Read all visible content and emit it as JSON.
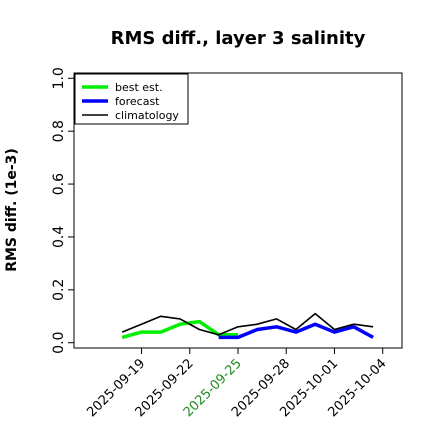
{
  "chart_data": {
    "type": "line",
    "title": "RMS diff., layer 3 salinity",
    "ylabel": "RMS diff. (1e-3)",
    "xlabel": "",
    "ylim": [
      -0.02,
      1.02
    ],
    "yticks": [
      0.0,
      0.2,
      0.4,
      0.6,
      0.8,
      1.0
    ],
    "ytick_labels": [
      "0.0",
      "0.2",
      "0.4",
      "0.6",
      "0.8",
      "1.0"
    ],
    "xlim": [
      -7.0,
      27.0
    ],
    "xticks": [
      0,
      5,
      10,
      15,
      20,
      25
    ],
    "xtick_labels": [
      "2025-09-19",
      "2025-09-22",
      "2025-09-25",
      "2025-09-28",
      "2025-10-01",
      "2025-10-04"
    ],
    "highlight_tick": "2025-09-25",
    "highlight_color": "#228b22",
    "legend_position": "upper left",
    "grid": false,
    "series": [
      {
        "name": "best est.",
        "color": "#00ee00",
        "width": 3.5,
        "x": [
          -2,
          0,
          2,
          4,
          6,
          8,
          10
        ],
        "y": [
          0.02,
          0.04,
          0.04,
          0.07,
          0.08,
          0.03,
          0.03
        ]
      },
      {
        "name": "forecast",
        "color": "#0000ff",
        "width": 3.5,
        "x": [
          8,
          10,
          12,
          14,
          16,
          18,
          20,
          22,
          24
        ],
        "y": [
          0.02,
          0.02,
          0.05,
          0.06,
          0.04,
          0.07,
          0.04,
          0.06,
          0.02
        ]
      },
      {
        "name": "climatology",
        "color": "#000000",
        "width": 1.6,
        "x": [
          -2,
          0,
          2,
          4,
          6,
          8,
          10,
          12,
          14,
          16,
          18,
          20,
          22,
          24
        ],
        "y": [
          0.04,
          0.07,
          0.1,
          0.09,
          0.05,
          0.03,
          0.06,
          0.07,
          0.09,
          0.05,
          0.11,
          0.05,
          0.07,
          0.06
        ]
      }
    ]
  }
}
